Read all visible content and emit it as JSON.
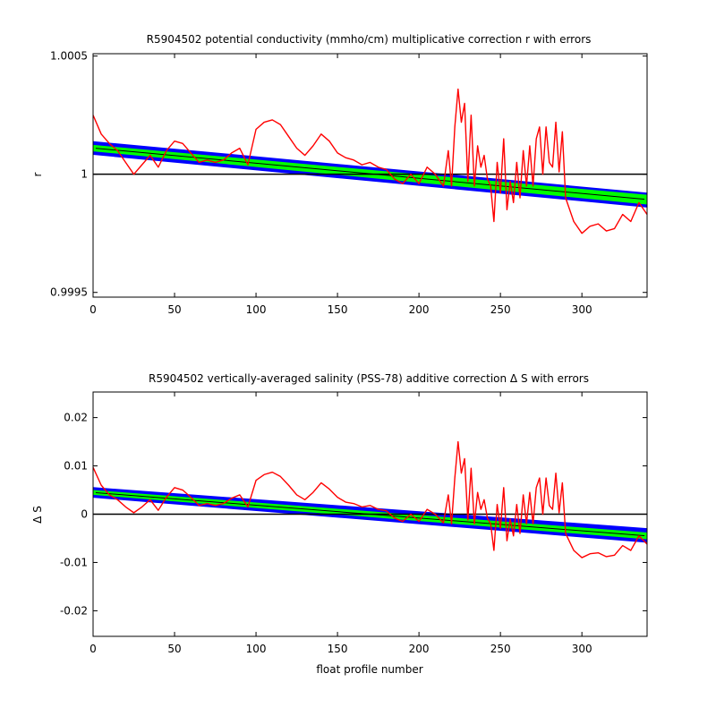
{
  "colors": {
    "background": "#ffffff",
    "axes": "#000000",
    "error_band_outer": "#0000ff",
    "error_band_inner": "#00ff00",
    "fit_line": "#000000",
    "profile_series": "#ff0000",
    "reference_line": "#000000"
  },
  "chart_data": [
    {
      "type": "line",
      "title": "R5904502 potential conductivity (mmho/cm) multiplicative correction r with errors",
      "xlabel": "",
      "ylabel": "r",
      "xlim": [
        0,
        340
      ],
      "ylim": [
        0.99948,
        1.00051
      ],
      "x_ticks": [
        "0",
        "50",
        "100",
        "150",
        "200",
        "250",
        "300"
      ],
      "x_tick_values": [
        0,
        50,
        100,
        150,
        200,
        250,
        300
      ],
      "y_ticks": [
        "0.9995",
        "1",
        "1.0005"
      ],
      "y_tick_values": [
        0.9995,
        1.0,
        1.0005
      ],
      "reference_line": 1.0,
      "fit": {
        "x": [
          0,
          340
        ],
        "y": [
          1.000111,
          0.999893
        ]
      },
      "error_band_outer": {
        "x": [
          0,
          340
        ],
        "upper": [
          1.00014,
          0.999922
        ],
        "lower": [
          1.000082,
          0.999859
        ]
      },
      "error_band_inner": {
        "x": [
          0,
          340
        ],
        "upper": [
          1.000124,
          0.999913
        ],
        "lower": [
          1.000097,
          0.999872
        ]
      },
      "series": [
        {
          "x": [
            0,
            5,
            10,
            15,
            20,
            25,
            30,
            35,
            40,
            45,
            50,
            55,
            60,
            65,
            70,
            75,
            80,
            85,
            90,
            95,
            100,
            105,
            110,
            115,
            120,
            125,
            130,
            135,
            140,
            145,
            150,
            155,
            160,
            165,
            170,
            175,
            180,
            185,
            190,
            195,
            200,
            205,
            210,
            215,
            218,
            220,
            222,
            224,
            226,
            228,
            230,
            232,
            234,
            236,
            238,
            240,
            242,
            244,
            246,
            248,
            250,
            252,
            254,
            256,
            258,
            260,
            262,
            264,
            266,
            268,
            270,
            272,
            274,
            276,
            278,
            280,
            282,
            284,
            286,
            288,
            290,
            295,
            300,
            305,
            310,
            315,
            320,
            325,
            330,
            335,
            340
          ],
          "y": [
            1.00025,
            1.00017,
            1.00013,
            1.0001,
            1.00005,
            1.0,
            1.00004,
            1.00008,
            1.00003,
            1.0001,
            1.00014,
            1.00013,
            1.00009,
            1.00005,
            1.00006,
            1.00005,
            1.00006,
            1.00009,
            1.00011,
            1.00004,
            1.00019,
            1.00022,
            1.00023,
            1.00021,
            1.00016,
            1.00011,
            1.00008,
            1.00012,
            1.00017,
            1.00014,
            1.00009,
            1.00007,
            1.00006,
            1.00004,
            1.00005,
            1.00003,
            1.00002,
            0.99998,
            0.99996,
            1.0,
            0.99996,
            1.00003,
            1.0,
            0.99995,
            1.0001,
            0.99995,
            1.0002,
            1.00036,
            1.00022,
            1.0003,
            0.99997,
            1.00025,
            0.99995,
            1.00012,
            1.00003,
            1.00008,
            0.99998,
            0.99995,
            0.9998,
            1.00005,
            0.99992,
            1.00015,
            0.99985,
            0.99997,
            0.99988,
            1.00005,
            0.9999,
            1.0001,
            0.99995,
            1.00012,
            0.99995,
            1.00015,
            1.0002,
            1.0,
            1.0002,
            1.00005,
            1.00003,
            1.00022,
            1.00001,
            1.00018,
            0.9999,
            0.9998,
            0.99975,
            0.99978,
            0.99979,
            0.99976,
            0.99977,
            0.99983,
            0.9998,
            0.99988,
            0.99983
          ]
        }
      ]
    },
    {
      "type": "line",
      "title": "R5904502 vertically-averaged salinity (PSS-78) additive correction Δ S with errors",
      "xlabel": "float profile number",
      "ylabel": "Δ S",
      "xlim": [
        0,
        340
      ],
      "ylim": [
        -0.0253,
        0.0253
      ],
      "x_ticks": [
        "0",
        "50",
        "100",
        "150",
        "200",
        "250",
        "300"
      ],
      "x_tick_values": [
        0,
        50,
        100,
        150,
        200,
        250,
        300
      ],
      "y_ticks": [
        "0.02",
        "0.01",
        "0",
        "-0.01",
        "-0.02"
      ],
      "y_tick_values": [
        0.02,
        0.01,
        0,
        -0.01,
        -0.02
      ],
      "reference_line": 0,
      "fit": {
        "x": [
          0,
          340
        ],
        "y": [
          0.0045,
          -0.0045
        ]
      },
      "error_band_outer": {
        "x": [
          0,
          340
        ],
        "upper": [
          0.0056,
          -0.0029
        ],
        "lower": [
          0.0034,
          -0.0059
        ]
      },
      "error_band_inner": {
        "x": [
          0,
          340
        ],
        "upper": [
          0.005,
          -0.0038
        ],
        "lower": [
          0.004,
          -0.0052
        ]
      },
      "series": [
        {
          "x": [
            0,
            5,
            10,
            15,
            20,
            25,
            30,
            35,
            40,
            45,
            50,
            55,
            60,
            65,
            70,
            75,
            80,
            85,
            90,
            95,
            100,
            105,
            110,
            115,
            120,
            125,
            130,
            135,
            140,
            145,
            150,
            155,
            160,
            165,
            170,
            175,
            180,
            185,
            190,
            195,
            200,
            205,
            210,
            215,
            218,
            220,
            222,
            224,
            226,
            228,
            230,
            232,
            234,
            236,
            238,
            240,
            242,
            244,
            246,
            248,
            250,
            252,
            254,
            256,
            258,
            260,
            262,
            264,
            266,
            268,
            270,
            272,
            274,
            276,
            278,
            280,
            282,
            284,
            286,
            288,
            290,
            295,
            300,
            305,
            310,
            315,
            320,
            325,
            330,
            335,
            340
          ],
          "y": [
            0.0097,
            0.006,
            0.004,
            0.003,
            0.0015,
            0.0003,
            0.0015,
            0.003,
            0.0008,
            0.0035,
            0.0055,
            0.005,
            0.0035,
            0.0018,
            0.0022,
            0.0018,
            0.0022,
            0.0033,
            0.004,
            0.0015,
            0.007,
            0.0082,
            0.0087,
            0.0078,
            0.006,
            0.004,
            0.003,
            0.0045,
            0.0065,
            0.0052,
            0.0035,
            0.0025,
            0.0022,
            0.0015,
            0.0018,
            0.001,
            0.0007,
            -0.0008,
            -0.0015,
            0.0,
            -0.0015,
            0.001,
            0.0,
            -0.0018,
            0.004,
            -0.002,
            0.0075,
            0.015,
            0.0085,
            0.0115,
            -0.0012,
            0.0095,
            -0.002,
            0.0045,
            0.001,
            0.003,
            -0.0008,
            -0.002,
            -0.0075,
            0.002,
            -0.003,
            0.0055,
            -0.0055,
            -0.001,
            -0.0045,
            0.002,
            -0.004,
            0.004,
            -0.002,
            0.0045,
            -0.002,
            0.0055,
            0.0075,
            0.0,
            0.0075,
            0.0018,
            0.001,
            0.0085,
            0.0003,
            0.0065,
            -0.004,
            -0.0075,
            -0.009,
            -0.0082,
            -0.008,
            -0.0088,
            -0.0085,
            -0.0065,
            -0.0075,
            -0.0045,
            -0.0062
          ]
        }
      ]
    }
  ]
}
